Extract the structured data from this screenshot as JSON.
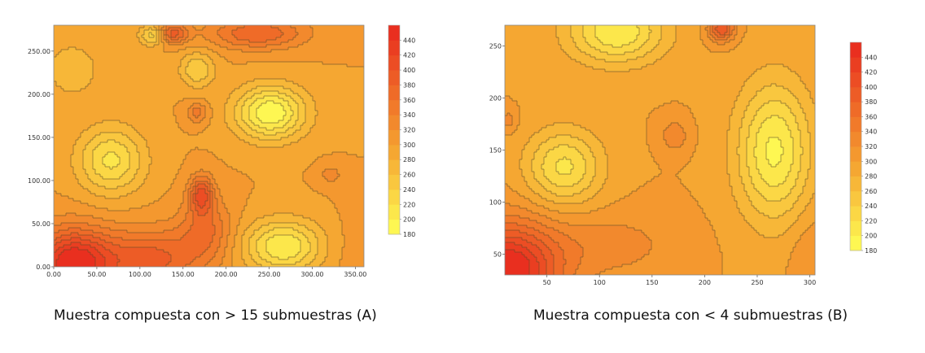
{
  "chart_data": [
    {
      "type": "heatmap",
      "subtype": "filled-contour",
      "caption": "Muestra compuesta con > 15 submuestras (A)",
      "x_ticks": [
        "0.00",
        "50.00",
        "100.00",
        "150.00",
        "200.00",
        "250.00",
        "300.00",
        "350.00"
      ],
      "y_ticks": [
        "0.00",
        "50.00",
        "100.00",
        "150.00",
        "200.00",
        "250.00"
      ],
      "xlim": [
        0,
        360
      ],
      "ylim": [
        0,
        280
      ],
      "colorbar_ticks": [
        "180",
        "200",
        "220",
        "240",
        "260",
        "280",
        "300",
        "320",
        "340",
        "360",
        "380",
        "400",
        "420",
        "440"
      ],
      "colorbar_range": [
        180,
        460
      ],
      "colors": {
        "low": "#ffff55",
        "mid": "#f5a531",
        "high": "#e8281e"
      },
      "features": [
        {
          "x": 20,
          "y": 5,
          "v": 460,
          "sx": 45,
          "sy": 40
        },
        {
          "x": 110,
          "y": 10,
          "v": 390,
          "sx": 60,
          "sy": 35
        },
        {
          "x": 170,
          "y": 85,
          "v": 400,
          "sx": 14,
          "sy": 22
        },
        {
          "x": 175,
          "y": 45,
          "v": 360,
          "sx": 30,
          "sy": 35
        },
        {
          "x": 65,
          "y": 125,
          "v": 215,
          "sx": 38,
          "sy": 38
        },
        {
          "x": 250,
          "y": 180,
          "v": 180,
          "sx": 40,
          "sy": 30
        },
        {
          "x": 265,
          "y": 25,
          "v": 200,
          "sx": 45,
          "sy": 30
        },
        {
          "x": 135,
          "y": 272,
          "v": 400,
          "sx": 18,
          "sy": 12
        },
        {
          "x": 235,
          "y": 272,
          "v": 380,
          "sx": 55,
          "sy": 18
        },
        {
          "x": 115,
          "y": 270,
          "v": 215,
          "sx": 16,
          "sy": 12
        },
        {
          "x": 165,
          "y": 180,
          "v": 350,
          "sx": 12,
          "sy": 12
        },
        {
          "x": 320,
          "y": 108,
          "v": 330,
          "sx": 14,
          "sy": 12
        },
        {
          "x": 345,
          "y": 20,
          "v": 310,
          "sx": 40,
          "sy": 40
        },
        {
          "x": 20,
          "y": 230,
          "v": 260,
          "sx": 30,
          "sy": 30
        },
        {
          "x": 165,
          "y": 230,
          "v": 240,
          "sx": 20,
          "sy": 20
        }
      ]
    },
    {
      "type": "heatmap",
      "subtype": "filled-contour",
      "caption": "Muestra compuesta con < 4 submuestras (B)",
      "x_ticks": [
        "50",
        "100",
        "150",
        "200",
        "250",
        "300"
      ],
      "y_ticks": [
        "50",
        "100",
        "150",
        "200",
        "250"
      ],
      "xlim": [
        10,
        305
      ],
      "ylim": [
        30,
        270
      ],
      "colorbar_ticks": [
        "180",
        "200",
        "220",
        "240",
        "260",
        "280",
        "300",
        "320",
        "340",
        "360",
        "380",
        "400",
        "420",
        "440"
      ],
      "colorbar_range": [
        180,
        460
      ],
      "colors": {
        "low": "#ffff55",
        "mid": "#f5a531",
        "high": "#e8281e"
      },
      "features": [
        {
          "x": 10,
          "y": 35,
          "v": 470,
          "sx": 50,
          "sy": 45
        },
        {
          "x": 110,
          "y": 60,
          "v": 330,
          "sx": 60,
          "sy": 30
        },
        {
          "x": 65,
          "y": 135,
          "v": 215,
          "sx": 35,
          "sy": 35
        },
        {
          "x": 115,
          "y": 265,
          "v": 200,
          "sx": 45,
          "sy": 30
        },
        {
          "x": 265,
          "y": 150,
          "v": 195,
          "sx": 35,
          "sy": 65
        },
        {
          "x": 215,
          "y": 268,
          "v": 400,
          "sx": 12,
          "sy": 12
        },
        {
          "x": 170,
          "y": 165,
          "v": 340,
          "sx": 12,
          "sy": 14
        },
        {
          "x": 200,
          "y": 60,
          "v": 300,
          "sx": 30,
          "sy": 60
        },
        {
          "x": 300,
          "y": 50,
          "v": 320,
          "sx": 20,
          "sy": 40
        },
        {
          "x": 12,
          "y": 180,
          "v": 330,
          "sx": 8,
          "sy": 10
        }
      ]
    }
  ]
}
